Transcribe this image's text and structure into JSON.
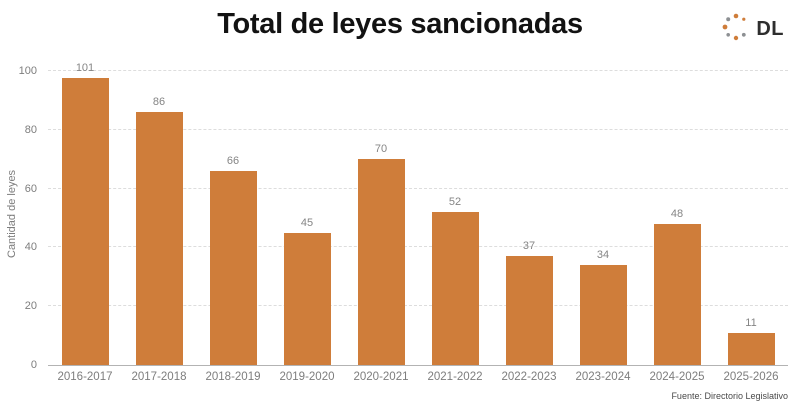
{
  "title": "Total de leyes sancionadas",
  "logo": {
    "text": "DL",
    "dot_colors": [
      "#CF7D3A",
      "#8d9093"
    ]
  },
  "source": "Fuente: Directorio Legislativo",
  "chart_data": {
    "type": "bar",
    "title": "Total de leyes sancionadas",
    "categories": [
      "2016-2017",
      "2017-2018",
      "2018-2019",
      "2019-2020",
      "2020-2021",
      "2021-2022",
      "2022-2023",
      "2023-2024",
      "2024-2025",
      "2025-2026"
    ],
    "values": [
      101,
      86,
      66,
      45,
      70,
      52,
      37,
      34,
      48,
      11
    ],
    "xlabel": "",
    "ylabel": "Cantidad de leyes",
    "ylim": [
      0,
      100
    ],
    "yticks": [
      0,
      20,
      40,
      60,
      80,
      100
    ],
    "grid": true,
    "legend": "none",
    "bar_color": "#CF7D3A"
  }
}
